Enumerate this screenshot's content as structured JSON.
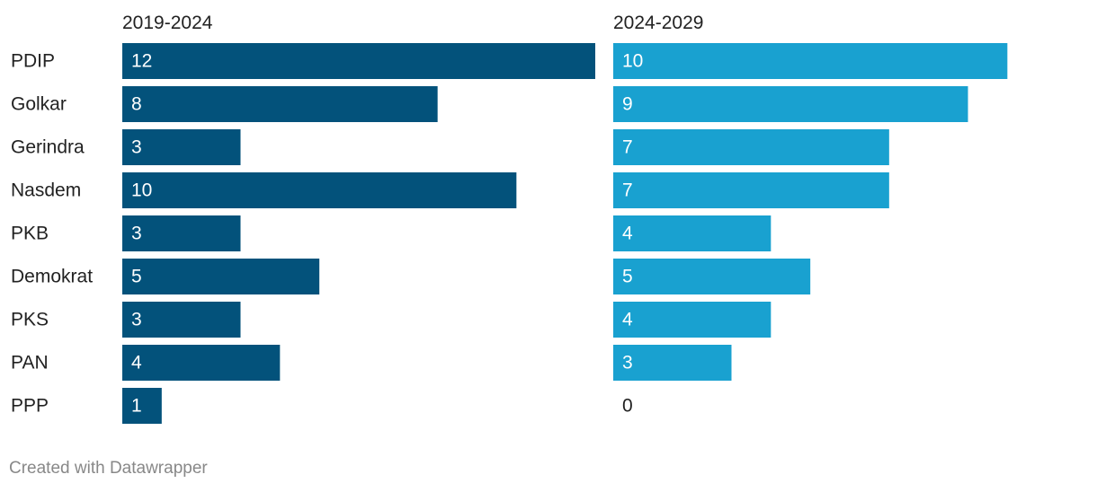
{
  "chart_data": {
    "type": "bar",
    "orientation": "horizontal",
    "categories": [
      "PDIP",
      "Golkar",
      "Gerindra",
      "Nasdem",
      "PKB",
      "Demokrat",
      "PKS",
      "PAN",
      "PPP"
    ],
    "series": [
      {
        "name": "2019-2024",
        "values": [
          12,
          8,
          3,
          10,
          3,
          5,
          3,
          4,
          1
        ],
        "color": "#03527b"
      },
      {
        "name": "2024-2029",
        "values": [
          10,
          9,
          7,
          7,
          4,
          5,
          4,
          3,
          0
        ],
        "color": "#19a1d0"
      }
    ],
    "xlim": [
      0,
      12
    ],
    "grid": false,
    "legend": "none",
    "layout": "small-multiples"
  },
  "credit": "Created with Datawrapper"
}
